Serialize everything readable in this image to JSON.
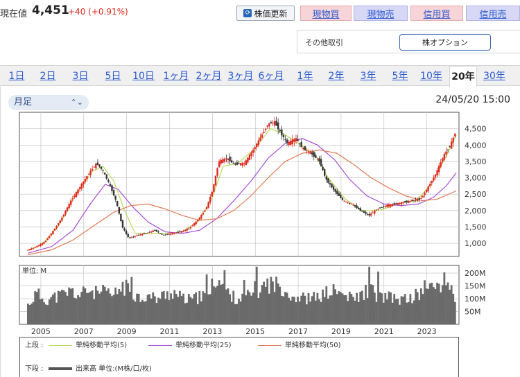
{
  "header": {
    "price_label": "現在値",
    "price_value": "4,451",
    "price_change": "+40 (+0.91%)",
    "refresh_label": "株価更新",
    "trade_buttons": [
      "現物買",
      "現物売",
      "信用買",
      "信用売"
    ],
    "other_label": "その他取引",
    "option_label": "株オプション"
  },
  "tabs": [
    "1日",
    "2日",
    "3日",
    "5日",
    "10日",
    "1ヶ月",
    "2ヶ月",
    "3ヶ月",
    "6ヶ月",
    "1年",
    "2年",
    "3年",
    "5年",
    "10年",
    "20年",
    "30年"
  ],
  "active_tab": "20年",
  "interval": "月足",
  "timestamp": "24/05/20 15:00",
  "colors": {
    "up_candle": "#e0281e",
    "down_candle": "#333333",
    "ma5": "#b7dc55",
    "ma25": "#a74cd8",
    "ma50": "#e07a52",
    "volume": "#6a6a6a",
    "tab_link": "#2b5ad0"
  },
  "chart_data": [
    {
      "type": "line",
      "subtype": "candlestick",
      "x_tick_labels": [
        "2005",
        "2007",
        "2009",
        "2011",
        "2013",
        "2015",
        "2017",
        "2019",
        "2021",
        "2023"
      ],
      "y_tick_labels": [
        "4,500",
        "4,000",
        "3,500",
        "3,000",
        "2,500",
        "2,000",
        "1,500",
        "1,000"
      ],
      "ylim": [
        600,
        5000
      ],
      "xlim": [
        2004.0,
        2024.5
      ],
      "grid": true,
      "price_points": [
        [
          2004.4,
          800
        ],
        [
          2004.8,
          900
        ],
        [
          2005.2,
          1050
        ],
        [
          2005.6,
          1400
        ],
        [
          2006.0,
          1800
        ],
        [
          2006.4,
          2300
        ],
        [
          2006.8,
          2700
        ],
        [
          2007.2,
          3100
        ],
        [
          2007.6,
          3450
        ],
        [
          2007.9,
          3200
        ],
        [
          2008.2,
          2800
        ],
        [
          2008.5,
          2300
        ],
        [
          2008.8,
          1500
        ],
        [
          2009.1,
          1150
        ],
        [
          2009.5,
          1250
        ],
        [
          2009.9,
          1300
        ],
        [
          2010.3,
          1400
        ],
        [
          2010.7,
          1250
        ],
        [
          2011.1,
          1300
        ],
        [
          2011.5,
          1350
        ],
        [
          2011.9,
          1450
        ],
        [
          2012.3,
          1700
        ],
        [
          2012.7,
          2050
        ],
        [
          2013.0,
          2600
        ],
        [
          2013.3,
          3500
        ],
        [
          2013.7,
          3600
        ],
        [
          2014.0,
          3400
        ],
        [
          2014.5,
          3450
        ],
        [
          2014.9,
          3850
        ],
        [
          2015.3,
          4300
        ],
        [
          2015.6,
          4650
        ],
        [
          2015.9,
          4700
        ],
        [
          2016.2,
          4350
        ],
        [
          2016.5,
          4050
        ],
        [
          2016.9,
          4200
        ],
        [
          2017.2,
          3900
        ],
        [
          2017.6,
          3750
        ],
        [
          2018.0,
          3500
        ],
        [
          2018.3,
          2950
        ],
        [
          2018.7,
          2600
        ],
        [
          2019.1,
          2300
        ],
        [
          2019.5,
          2200
        ],
        [
          2019.9,
          2000
        ],
        [
          2020.3,
          1850
        ],
        [
          2020.7,
          2050
        ],
        [
          2021.1,
          2150
        ],
        [
          2021.5,
          2200
        ],
        [
          2021.9,
          2250
        ],
        [
          2022.3,
          2300
        ],
        [
          2022.7,
          2350
        ],
        [
          2023.0,
          2650
        ],
        [
          2023.4,
          3100
        ],
        [
          2023.8,
          3700
        ],
        [
          2024.1,
          4000
        ],
        [
          2024.37,
          4451
        ]
      ],
      "series": [
        {
          "name": "単純移動平均(5)",
          "values": [
            [
              2004.4,
              780
            ],
            [
              2005.0,
              950
            ],
            [
              2005.8,
              1500
            ],
            [
              2006.6,
              2450
            ],
            [
              2007.4,
              3200
            ],
            [
              2007.9,
              3350
            ],
            [
              2008.4,
              2900
            ],
            [
              2008.9,
              2000
            ],
            [
              2009.4,
              1300
            ],
            [
              2010.0,
              1300
            ],
            [
              2010.8,
              1300
            ],
            [
              2011.6,
              1350
            ],
            [
              2012.4,
              1700
            ],
            [
              2013.0,
              2400
            ],
            [
              2013.5,
              3350
            ],
            [
              2014.2,
              3450
            ],
            [
              2015.0,
              3900
            ],
            [
              2015.7,
              4500
            ],
            [
              2016.3,
              4350
            ],
            [
              2017.0,
              4050
            ],
            [
              2017.8,
              3700
            ],
            [
              2018.4,
              3000
            ],
            [
              2019.2,
              2350
            ],
            [
              2020.0,
              2000
            ],
            [
              2020.8,
              2000
            ],
            [
              2021.6,
              2200
            ],
            [
              2022.5,
              2300
            ],
            [
              2023.2,
              2800
            ],
            [
              2023.9,
              3650
            ],
            [
              2024.37,
              4300
            ]
          ]
        },
        {
          "name": "単純移動平均(25)",
          "values": [
            [
              2004.4,
              700
            ],
            [
              2005.5,
              900
            ],
            [
              2006.5,
              1400
            ],
            [
              2007.3,
              2200
            ],
            [
              2008.0,
              2800
            ],
            [
              2008.6,
              2650
            ],
            [
              2009.3,
              2100
            ],
            [
              2010.0,
              1650
            ],
            [
              2010.8,
              1350
            ],
            [
              2011.6,
              1300
            ],
            [
              2012.4,
              1400
            ],
            [
              2013.2,
              1750
            ],
            [
              2014.0,
              2300
            ],
            [
              2014.8,
              2900
            ],
            [
              2015.6,
              3600
            ],
            [
              2016.4,
              4050
            ],
            [
              2017.2,
              4200
            ],
            [
              2017.9,
              4000
            ],
            [
              2018.7,
              3550
            ],
            [
              2019.4,
              2950
            ],
            [
              2020.2,
              2450
            ],
            [
              2021.0,
              2200
            ],
            [
              2021.8,
              2150
            ],
            [
              2022.6,
              2200
            ],
            [
              2023.3,
              2400
            ],
            [
              2023.9,
              2750
            ],
            [
              2024.37,
              3150
            ]
          ]
        },
        {
          "name": "単純移動平均(50)",
          "values": [
            [
              2004.4,
              650
            ],
            [
              2005.5,
              800
            ],
            [
              2006.5,
              1100
            ],
            [
              2007.5,
              1550
            ],
            [
              2008.4,
              1950
            ],
            [
              2009.2,
              2150
            ],
            [
              2010.0,
              2200
            ],
            [
              2010.8,
              2050
            ],
            [
              2011.6,
              1850
            ],
            [
              2012.4,
              1700
            ],
            [
              2013.2,
              1750
            ],
            [
              2014.0,
              2000
            ],
            [
              2014.8,
              2450
            ],
            [
              2015.6,
              3000
            ],
            [
              2016.4,
              3500
            ],
            [
              2017.2,
              3750
            ],
            [
              2018.0,
              3850
            ],
            [
              2018.8,
              3750
            ],
            [
              2019.6,
              3400
            ],
            [
              2020.4,
              3000
            ],
            [
              2021.2,
              2700
            ],
            [
              2022.0,
              2450
            ],
            [
              2022.8,
              2300
            ],
            [
              2023.5,
              2350
            ],
            [
              2024.37,
              2600
            ]
          ]
        }
      ]
    },
    {
      "type": "bar",
      "unit_label": "単位: M",
      "y_tick_labels": [
        "200M",
        "150M",
        "100M",
        "50M"
      ],
      "ylim": [
        0,
        230
      ],
      "volume_points": [
        [
          2004.4,
          75
        ],
        [
          2004.8,
          120
        ],
        [
          2005.2,
          95
        ],
        [
          2005.6,
          105
        ],
        [
          2006.0,
          115
        ],
        [
          2006.4,
          130
        ],
        [
          2006.8,
          110
        ],
        [
          2007.2,
          135
        ],
        [
          2007.6,
          120
        ],
        [
          2008.0,
          125
        ],
        [
          2008.4,
          110
        ],
        [
          2008.8,
          150
        ],
        [
          2009.2,
          130
        ],
        [
          2009.6,
          105
        ],
        [
          2010.0,
          110
        ],
        [
          2010.4,
          100
        ],
        [
          2010.8,
          115
        ],
        [
          2011.2,
          125
        ],
        [
          2011.6,
          100
        ],
        [
          2012.0,
          95
        ],
        [
          2012.4,
          105
        ],
        [
          2012.8,
          110
        ],
        [
          2013.2,
          190
        ],
        [
          2013.6,
          130
        ],
        [
          2014.0,
          105
        ],
        [
          2014.4,
          100
        ],
        [
          2014.8,
          115
        ],
        [
          2015.2,
          135
        ],
        [
          2015.6,
          160
        ],
        [
          2015.9,
          155
        ],
        [
          2016.3,
          145
        ],
        [
          2016.7,
          110
        ],
        [
          2017.1,
          105
        ],
        [
          2017.5,
          100
        ],
        [
          2017.9,
          105
        ],
        [
          2018.3,
          120
        ],
        [
          2018.7,
          130
        ],
        [
          2019.1,
          115
        ],
        [
          2019.5,
          100
        ],
        [
          2019.9,
          110
        ],
        [
          2020.3,
          140
        ],
        [
          2020.7,
          110
        ],
        [
          2021.1,
          105
        ],
        [
          2021.5,
          100
        ],
        [
          2021.9,
          95
        ],
        [
          2022.3,
          105
        ],
        [
          2022.7,
          120
        ],
        [
          2023.1,
          135
        ],
        [
          2023.5,
          155
        ],
        [
          2023.9,
          165
        ],
        [
          2024.2,
          150
        ],
        [
          2024.37,
          55
        ]
      ]
    }
  ],
  "legend": {
    "upper_label": "上段 :",
    "lower_label": "下段 :",
    "items": [
      "単純移動平均(5)",
      "単純移動平均(25)",
      "単純移動平均(50)"
    ],
    "volume_item": "出来高 単位:(M株/口/枚)"
  }
}
